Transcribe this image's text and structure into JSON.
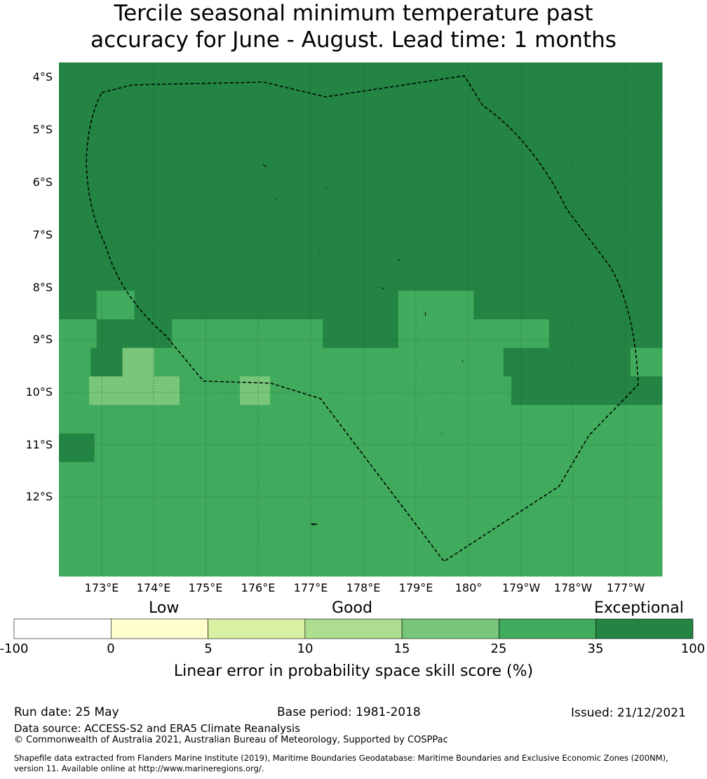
{
  "title": {
    "line1": "Tercile seasonal minimum temperature past",
    "line2": "accuracy for June - August. Lead time: 1 months"
  },
  "map": {
    "lat_labels": [
      "4°S",
      "5°S",
      "6°S",
      "7°S",
      "8°S",
      "9°S",
      "10°S",
      "11°S",
      "12°S"
    ],
    "lon_labels": [
      "173°E",
      "174°E",
      "175°E",
      "176°E",
      "177°E",
      "178°E",
      "179°E",
      "180°",
      "179°W",
      "178°W",
      "177°W"
    ],
    "boundary": "dashed EEZ outline",
    "grid_rows_top_to_bottom": [
      "DDDDDDDDDDDDDD",
      "DDDDDDDDDDDDDD",
      "DDDDDDDDDDDDDD",
      "DDDDDDDDDDDDDD",
      "DDDDDDDDDDDDDD",
      "DDDDDDDDDDDDDD",
      "DDDDDDDDDDDDDD",
      "DDDDDDDDDDDDDD",
      "DMDDDDDDDMMDDDDD",
      "MDDMMMMDDMMMMDDD",
      "MDLMMMMMMMMMMMDDDDM",
      "MLLLMMLMMMMMMMMDDDDD",
      "MMMMMMMMMMMMMMMMM",
      "DMMMMMMMMMMMMMMMM",
      "MMMMMMMMMMMMMMMMM",
      "MMMMMMMMMMMMMMMMM",
      "MMMMMMMMMMMMMMMMM",
      "MMMMMMMMMMMMMMMMM"
    ]
  },
  "colorbar": {
    "categories": [
      "Low",
      "Good",
      "Exceptional"
    ],
    "ticks": [
      "-100",
      "0",
      "5",
      "10",
      "15",
      "25",
      "35",
      "100"
    ],
    "colors": [
      "#ffffff",
      "#ffffcc",
      "#d9f0a3",
      "#addd8e",
      "#78c679",
      "#41ab5d",
      "#238443"
    ],
    "label": "Linear error in probability space skill score (%)"
  },
  "footer": {
    "run_date": "Run date: 25 May",
    "base_period": "Base period: 1981-2018",
    "issued": "Issued: 21/12/2021",
    "data_source": "Data source: ACCESS-S2 and ERA5 Climate Reanalysis",
    "copyright": "© Commonwealth of Australia 2021, Australian Bureau of Meteorology, Supported by COSPPac",
    "shapefile1": "Shapefile data extracted from Flanders Marine Institute (2019), Maritime Boundaries Geodatabase: Maritime Boundaries and Exclusive Economic Zones (200NM),",
    "shapefile2": "version 11. Available online at http://www.marineregions.org/."
  }
}
